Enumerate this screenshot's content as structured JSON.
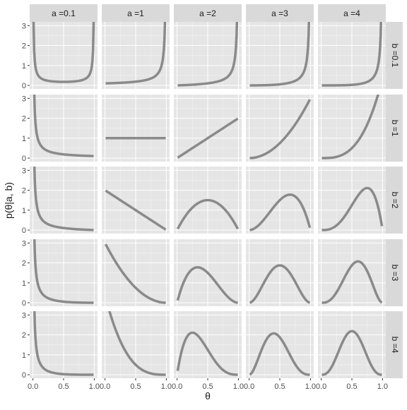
{
  "chart_data": {
    "type": "line",
    "layout": "facet-grid",
    "xlabel": "θ",
    "ylabel": "p(θ|a, b)",
    "xlim": [
      0,
      1
    ],
    "ylim": [
      0,
      3.1
    ],
    "x_ticks": [
      0.0,
      0.5,
      1.0
    ],
    "x_tick_labels": [
      "0.0",
      "0.5",
      "1.0"
    ],
    "y_ticks": [
      0,
      1,
      2,
      3
    ],
    "y_tick_labels": [
      "0",
      "1",
      "2",
      "3"
    ],
    "grid": true,
    "columns": [
      {
        "label": "a =0.1",
        "a": 0.1
      },
      {
        "label": "a =1",
        "a": 1
      },
      {
        "label": "a =2",
        "a": 2
      },
      {
        "label": "a =3",
        "a": 3
      },
      {
        "label": "a =4",
        "a": 4
      }
    ],
    "rows": [
      {
        "label": "b =0.1",
        "b": 0.1
      },
      {
        "label": "b =1",
        "b": 1
      },
      {
        "label": "b =2",
        "b": 2
      },
      {
        "label": "b =3",
        "b": 3
      },
      {
        "label": "b =4",
        "b": 4
      }
    ],
    "distribution": "beta",
    "x_range": [
      0.01,
      0.99
    ],
    "x_step": 0.01,
    "colors": {
      "panel_bg": "#e5e5e5",
      "strip_bg": "#d9d9d9",
      "grid": "#ffffff",
      "line": "#8a8a8a",
      "text": "#1a1a1a",
      "tick_text": "#4d4d4d"
    }
  }
}
